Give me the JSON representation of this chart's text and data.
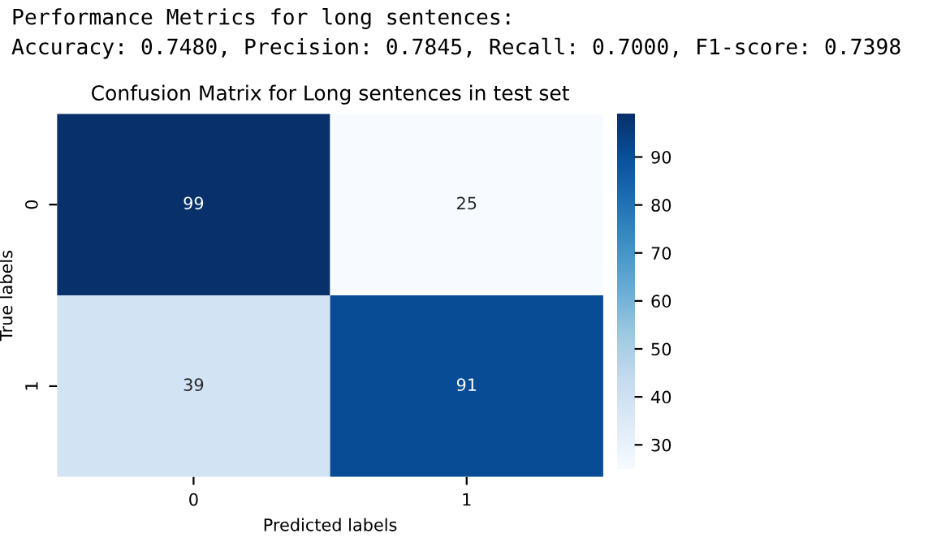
{
  "chart_data": {
    "type": "heatmap",
    "title": "Confusion Matrix for Long sentences in test set",
    "xlabel": "Predicted labels",
    "ylabel": "True labels",
    "categories": [
      "0",
      "1"
    ],
    "y_categories": [
      "0",
      "1"
    ],
    "cells": [
      [
        99,
        25
      ],
      [
        39,
        91
      ]
    ],
    "data_labels": true,
    "clim": [
      25,
      99
    ],
    "cticks": [
      30,
      40,
      50,
      60,
      70,
      80,
      90
    ],
    "annotations": [
      "Performance Metrics for long sentences:",
      "Accuracy: 0.7480, Precision: 0.7845, Recall: 0.7000, F1-score: 0.7398"
    ]
  }
}
